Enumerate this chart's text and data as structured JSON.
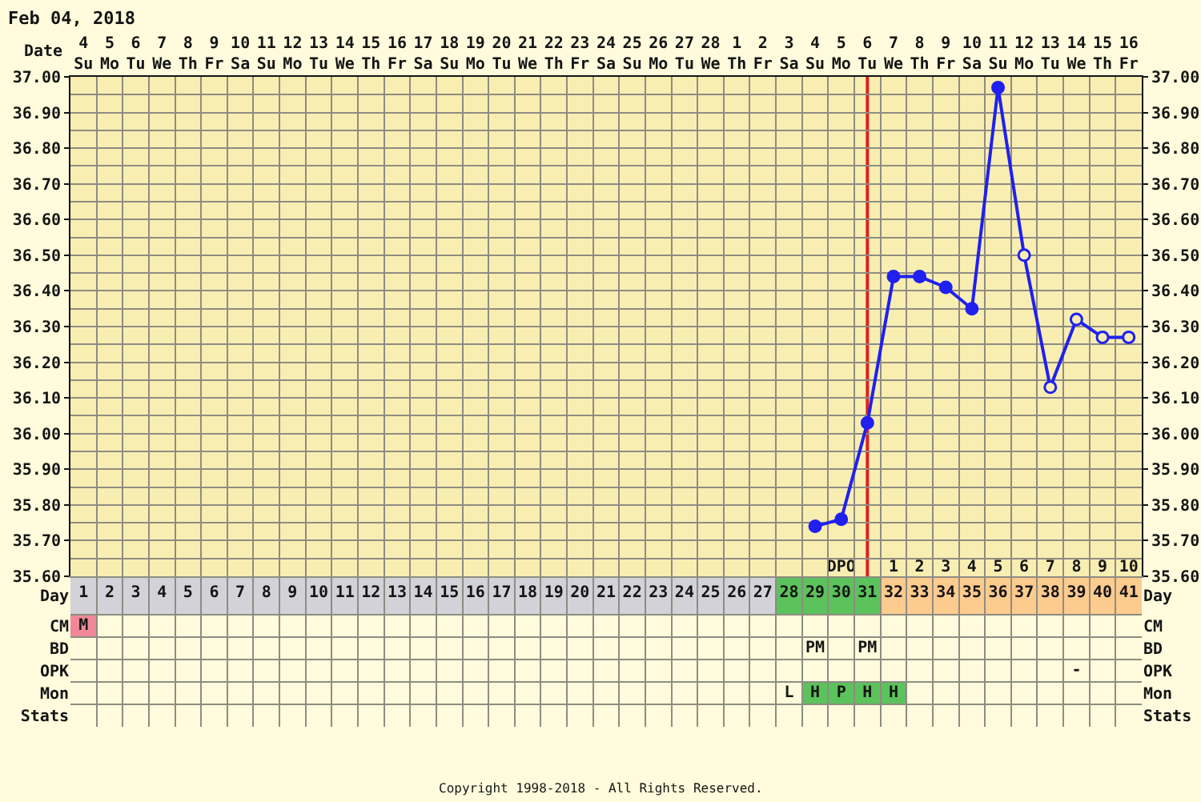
{
  "chart_data": [
    {
      "type": "line",
      "title": "Feb 04, 2018",
      "x2label": "Date",
      "xlim": [
        0.5,
        41.5
      ],
      "xticks": [
        {
          "value": 0.5,
          "label": null
        },
        1,
        {
          "value": 1.5,
          "label": null
        },
        2,
        {
          "value": 2.5,
          "label": null
        },
        3,
        {
          "value": 3.5,
          "label": null
        },
        4,
        {
          "value": 4.5,
          "label": null
        },
        5,
        {
          "value": 5.5,
          "label": null
        },
        6,
        {
          "value": 6.5,
          "label": null
        },
        7,
        {
          "value": 7.5,
          "label": null
        },
        8,
        {
          "value": 8.5,
          "label": null
        },
        9,
        {
          "value": 9.5,
          "label": null
        },
        10,
        {
          "value": 10.5,
          "label": null
        },
        11,
        {
          "value": 11.5,
          "label": null
        },
        12,
        {
          "value": 12.5,
          "label": null
        },
        13,
        {
          "value": 13.5,
          "label": null
        },
        14,
        {
          "value": 14.5,
          "label": null
        },
        15,
        {
          "value": 15.5,
          "label": null
        },
        16,
        {
          "value": 16.5,
          "label": null
        },
        17,
        {
          "value": 17.5,
          "label": null
        },
        18,
        {
          "value": 18.5,
          "label": null
        },
        19,
        {
          "value": 19.5,
          "label": null
        },
        20,
        {
          "value": 20.5,
          "label": null
        },
        21,
        {
          "value": 21.5,
          "label": null
        },
        22,
        {
          "value": 22.5,
          "label": null
        },
        23,
        {
          "value": 23.5,
          "label": null
        },
        24,
        {
          "value": 24.5,
          "label": null
        },
        25,
        {
          "value": 25.5,
          "label": null
        },
        26,
        {
          "value": 26.5,
          "label": null
        },
        27,
        {
          "value": 27.5,
          "label": null
        },
        28,
        {
          "value": 28.5,
          "label": null
        },
        29,
        {
          "value": 29.5,
          "label": null
        },
        30,
        {
          "value": 30.5,
          "label": null
        },
        31,
        {
          "value": 31.5,
          "label": null
        },
        32,
        {
          "value": 32.5,
          "label": null
        },
        33,
        {
          "value": 33.5,
          "label": null
        },
        34,
        {
          "value": 34.5,
          "label": null
        },
        35,
        {
          "value": 35.5,
          "label": null
        },
        36,
        {
          "value": 36.5,
          "label": null
        },
        37,
        {
          "value": 37.5,
          "label": null
        },
        38,
        {
          "value": 38.5,
          "label": null
        },
        39,
        {
          "value": 39.5,
          "label": null
        },
        40,
        {
          "value": 40.5,
          "label": null
        },
        41,
        {
          "value": 41.5,
          "label": null
        }
      ],
      "x2lim": [
        "2018-02-03T12:00",
        "2018-03-16T12:00"
      ],
      "x2ticks": [
        {
          "value": "2018-02-04",
          "label": "4\nSu"
        },
        {
          "value": "2018-02-05",
          "label": "5\nMo"
        },
        {
          "value": "2018-02-06",
          "label": "6\nTu"
        },
        {
          "value": "2018-02-07",
          "label": "7\nWe"
        },
        {
          "value": "2018-02-08",
          "label": "8\nTh"
        },
        {
          "value": "2018-02-09",
          "label": "9\nFr"
        },
        {
          "value": "2018-02-10",
          "label": "10\nSa"
        },
        {
          "value": "2018-02-11",
          "label": "11\nSu"
        },
        {
          "value": "2018-02-12",
          "label": "12\nMo"
        },
        {
          "value": "2018-02-13",
          "label": "13\nTu"
        },
        {
          "value": "2018-02-14",
          "label": "14\nWe"
        },
        {
          "value": "2018-02-15",
          "label": "15\nTh"
        },
        {
          "value": "2018-02-16",
          "label": "16\nFr"
        },
        {
          "value": "2018-02-17",
          "label": "17\nSa"
        },
        {
          "value": "2018-02-18",
          "label": "18\nSu"
        },
        {
          "value": "2018-02-19",
          "label": "19\nMo"
        },
        {
          "value": "2018-02-20",
          "label": "20\nTu"
        },
        {
          "value": "2018-02-21",
          "label": "21\nWe"
        },
        {
          "value": "2018-02-22",
          "label": "22\nTh"
        },
        {
          "value": "2018-02-23",
          "label": "23\nFr"
        },
        {
          "value": "2018-02-24",
          "label": "24\nSa"
        },
        {
          "value": "2018-02-25",
          "label": "25\nSu"
        },
        {
          "value": "2018-02-26",
          "label": "26\nMo"
        },
        {
          "value": "2018-02-27",
          "label": "27\nTu"
        },
        {
          "value": "2018-02-28",
          "label": "28\nWe"
        },
        {
          "value": "2018-03-01",
          "label": "1\nTh"
        },
        {
          "value": "2018-03-02",
          "label": "2\nFr"
        },
        {
          "value": "2018-03-03",
          "label": "3\nSa"
        },
        {
          "value": "2018-03-04",
          "label": "4\nSu"
        },
        {
          "value": "2018-03-05",
          "label": "5\nMo"
        },
        {
          "value": "2018-03-06",
          "label": "6\nTu"
        },
        {
          "value": "2018-03-07",
          "label": "7\nWe"
        },
        {
          "value": "2018-03-08",
          "label": "8\nTh"
        },
        {
          "value": "2018-03-09",
          "label": "9\nFr"
        },
        {
          "value": "2018-03-10",
          "label": "10\nSa"
        },
        {
          "value": "2018-03-11",
          "label": "11\nSu"
        },
        {
          "value": "2018-03-12",
          "label": "12\nMo"
        },
        {
          "value": "2018-03-13",
          "label": "13\nTu"
        },
        {
          "value": "2018-03-14",
          "label": "14\nWe"
        },
        {
          "value": "2018-03-15",
          "label": "15\nTh"
        },
        {
          "value": "2018-03-16",
          "label": "16\nFr"
        }
      ],
      "ylim": [
        35.6,
        37.0
      ],
      "yticks": [
        {
          "value": 35.6,
          "label": "35.60"
        },
        {
          "value": 35.65,
          "label": null
        },
        {
          "value": 35.7,
          "label": "35.70"
        },
        {
          "value": 35.75,
          "label": null
        },
        {
          "value": 35.8,
          "label": "35.80"
        },
        {
          "value": 35.85,
          "label": null
        },
        {
          "value": 35.9,
          "label": "35.90"
        },
        {
          "value": 35.95,
          "label": null
        },
        {
          "value": 36.0,
          "label": "36.00"
        },
        {
          "value": 36.05,
          "label": null
        },
        {
          "value": 36.1,
          "label": "36.10"
        },
        {
          "value": 36.15,
          "label": null
        },
        {
          "value": 36.2,
          "label": "36.20"
        },
        {
          "value": 36.25,
          "label": null
        },
        {
          "value": 36.3,
          "label": "36.30"
        },
        {
          "value": 36.35,
          "label": null
        },
        {
          "value": 36.4,
          "label": "36.40"
        },
        {
          "value": 36.45,
          "label": null
        },
        {
          "value": 36.5,
          "label": "36.50"
        },
        {
          "value": 36.55,
          "label": null
        },
        {
          "value": 36.6,
          "label": "36.60"
        },
        {
          "value": 36.65,
          "label": null
        },
        {
          "value": 36.7,
          "label": "36.70"
        },
        {
          "value": 36.75,
          "label": null
        },
        {
          "value": 36.8,
          "label": "36.80"
        },
        {
          "value": 36.85,
          "label": null
        },
        {
          "value": 36.9,
          "label": "36.90"
        },
        {
          "value": 36.95,
          "label": null
        },
        {
          "value": 37.0,
          "label": "37.00"
        }
      ],
      "y2lim": [
        35.6,
        37.0
      ],
      "y2ticks": [
        {
          "value": 35.6,
          "label": "35.60"
        },
        {
          "value": 35.7,
          "label": "35.70"
        },
        {
          "value": 35.8,
          "label": "35.80"
        },
        {
          "value": 35.9,
          "label": "35.90"
        },
        {
          "value": 36.0,
          "label": "36.00"
        },
        {
          "value": 36.1,
          "label": "36.10"
        },
        {
          "value": 36.2,
          "label": "36.20"
        },
        {
          "value": 36.3,
          "label": "36.30"
        },
        {
          "value": 36.4,
          "label": "36.40"
        },
        {
          "value": 36.5,
          "label": "36.50"
        },
        {
          "value": 36.6,
          "label": "36.60"
        },
        {
          "value": 36.7,
          "label": "36.70"
        },
        {
          "value": 36.8,
          "label": "36.80"
        },
        {
          "value": 36.9,
          "label": "36.90"
        },
        {
          "value": 37.0,
          "label": "37.00"
        }
      ],
      "grid": true,
      "marker": "circle",
      "line_style": "solid",
      "series": [
        {
          "color": "#2020f0",
          "x": [
            29,
            30,
            31,
            32,
            33,
            34,
            35,
            36,
            37,
            38,
            39,
            40,
            41
          ],
          "values": [
            35.74,
            35.76,
            36.03,
            36.44,
            36.44,
            36.41,
            36.35,
            36.97,
            36.5,
            36.13,
            36.32,
            36.27,
            36.27
          ],
          "colors": [
            "#2020f0",
            "#2020f0",
            "#2020f0",
            "#2020f0",
            "#2020f0",
            "#2020f0",
            "#2020f0",
            "#2020f0",
            "#f8eeb2",
            "#f8eeb2",
            "#f8eeb2",
            "#f8eeb2",
            "#f8eeb2"
          ]
        }
      ],
      "ref_lines": [
        {
          "axis": "x",
          "value": 31,
          "color": "#e0201c"
        }
      ]
    },
    {
      "type": "heatmap",
      "categories": [
        null,
        null,
        null,
        null,
        null,
        null,
        null,
        null,
        null,
        null,
        null,
        null,
        null,
        null,
        null,
        null,
        null,
        null,
        null,
        null,
        null,
        null,
        null,
        null,
        null,
        null,
        null,
        null,
        null,
        "DPO",
        null,
        "1",
        "2",
        "3",
        "4",
        "5",
        "6",
        "7",
        "8",
        "9",
        "10"
      ],
      "y_categories": [
        "Day",
        "CM",
        "BD",
        "OPK",
        "Mon",
        "Stats"
      ],
      "y2_categories": [
        "Day",
        "CM",
        "BD",
        "OPK",
        "Mon",
        "Stats"
      ],
      "cells": [
        [
          null,
          null,
          null,
          null,
          null,
          null,
          null,
          null,
          null,
          null,
          null,
          null,
          null,
          null,
          null,
          null,
          null,
          null,
          null,
          null,
          null,
          null,
          null,
          null,
          null,
          null,
          null,
          null,
          null,
          null,
          null,
          null,
          null,
          null,
          null,
          null,
          null,
          null,
          null,
          null,
          null
        ],
        [
          null,
          null,
          null,
          null,
          null,
          null,
          null,
          null,
          null,
          null,
          null,
          null,
          null,
          null,
          null,
          null,
          null,
          null,
          null,
          null,
          null,
          null,
          null,
          null,
          null,
          null,
          null,
          null,
          null,
          null,
          null,
          null,
          null,
          null,
          null,
          null,
          null,
          null,
          null,
          null,
          null
        ],
        [
          null,
          null,
          null,
          null,
          null,
          null,
          null,
          null,
          null,
          null,
          null,
          null,
          null,
          null,
          null,
          null,
          null,
          null,
          null,
          null,
          null,
          null,
          null,
          null,
          null,
          null,
          null,
          null,
          null,
          null,
          null,
          null,
          null,
          null,
          null,
          null,
          null,
          null,
          null,
          null,
          null
        ],
        [
          null,
          null,
          null,
          null,
          null,
          null,
          null,
          null,
          null,
          null,
          null,
          null,
          null,
          null,
          null,
          null,
          null,
          null,
          null,
          null,
          null,
          null,
          null,
          null,
          null,
          null,
          null,
          null,
          null,
          null,
          null,
          null,
          null,
          null,
          null,
          null,
          null,
          null,
          null,
          null,
          null
        ],
        [
          null,
          null,
          null,
          null,
          null,
          null,
          null,
          null,
          null,
          null,
          null,
          null,
          null,
          null,
          null,
          null,
          null,
          null,
          null,
          null,
          null,
          null,
          null,
          null,
          null,
          null,
          null,
          null,
          null,
          null,
          null,
          null,
          null,
          null,
          null,
          null,
          null,
          null,
          null,
          null,
          null
        ],
        [
          null,
          null,
          null,
          null,
          null,
          null,
          null,
          null,
          null,
          null,
          null,
          null,
          null,
          null,
          null,
          null,
          null,
          null,
          null,
          null,
          null,
          null,
          null,
          null,
          null,
          null,
          null,
          null,
          null,
          null,
          null,
          null,
          null,
          null,
          null,
          null,
          null,
          null,
          null,
          null,
          null
        ]
      ],
      "cell_labels": [
        null,
        [
          "M",
          null,
          null,
          null,
          null,
          null,
          null,
          null,
          null,
          null,
          null,
          null,
          null,
          null,
          null,
          null,
          null,
          null,
          null,
          null,
          null,
          null,
          null,
          null,
          null,
          null,
          null,
          null,
          null,
          null,
          null,
          null,
          null,
          null,
          null,
          null,
          null,
          null,
          null,
          null,
          null
        ],
        [
          null,
          null,
          null,
          null,
          null,
          null,
          null,
          null,
          null,
          null,
          null,
          null,
          null,
          null,
          null,
          null,
          null,
          null,
          null,
          null,
          null,
          null,
          null,
          null,
          null,
          null,
          null,
          null,
          "PM",
          null,
          "PM",
          null,
          null,
          null,
          null,
          null,
          null,
          null,
          null,
          null,
          null
        ],
        [
          null,
          null,
          null,
          null,
          null,
          null,
          null,
          null,
          null,
          null,
          null,
          null,
          null,
          null,
          null,
          null,
          null,
          null,
          null,
          null,
          null,
          null,
          null,
          null,
          null,
          null,
          null,
          null,
          null,
          null,
          null,
          null,
          null,
          null,
          null,
          null,
          null,
          null,
          "-",
          null,
          null
        ],
        [
          null,
          null,
          null,
          null,
          null,
          null,
          null,
          null,
          null,
          null,
          null,
          null,
          null,
          null,
          null,
          null,
          null,
          null,
          null,
          null,
          null,
          null,
          null,
          null,
          null,
          null,
          null,
          "L",
          "H",
          "P",
          "H",
          "H",
          null,
          null,
          null,
          null,
          null,
          null,
          null,
          null,
          null
        ],
        null
      ],
      "colors": [
        [
          "#d2d2d8",
          "#d2d2d8",
          "#d2d2d8",
          "#d2d2d8",
          "#d2d2d8",
          "#d2d2d8",
          "#d2d2d8",
          "#d2d2d8",
          "#d2d2d8",
          "#d2d2d8",
          "#d2d2d8",
          "#d2d2d8",
          "#d2d2d8",
          "#d2d2d8",
          "#d2d2d8",
          "#d2d2d8",
          "#d2d2d8",
          "#d2d2d8",
          "#d2d2d8",
          "#d2d2d8",
          "#d2d2d8",
          "#d2d2d8",
          "#d2d2d8",
          "#d2d2d8",
          "#d2d2d8",
          "#d2d2d8",
          "#d2d2d8",
          "#5cc25c",
          "#5cc25c",
          "#5cc25c",
          "#5cc25c",
          "#fccb8e",
          "#fccb8e",
          "#fccb8e",
          "#fccb8e",
          "#fccb8e",
          "#fccb8e",
          "#fccb8e",
          "#fccb8e",
          "#fccb8e",
          "#fccb8e"
        ],
        [
          "#f0889a",
          null,
          null,
          null,
          null,
          null,
          null,
          null,
          null,
          null,
          null,
          null,
          null,
          null,
          null,
          null,
          null,
          null,
          null,
          null,
          null,
          null,
          null,
          null,
          null,
          null,
          null,
          null,
          null,
          null,
          null,
          null,
          null,
          null,
          null,
          null,
          null,
          null,
          null,
          null,
          null
        ],
        null,
        null,
        [
          null,
          null,
          null,
          null,
          null,
          null,
          null,
          null,
          null,
          null,
          null,
          null,
          null,
          null,
          null,
          null,
          null,
          null,
          null,
          null,
          null,
          null,
          null,
          null,
          null,
          null,
          null,
          null,
          "#5cc25c",
          "#5cc25c",
          "#5cc25c",
          "#5cc25c",
          null,
          null,
          null,
          null,
          null,
          null,
          null,
          null,
          null
        ],
        null
      ],
      "annotations": [
        "Copyright 1998-2018 - All Rights Reserved."
      ]
    }
  ]
}
